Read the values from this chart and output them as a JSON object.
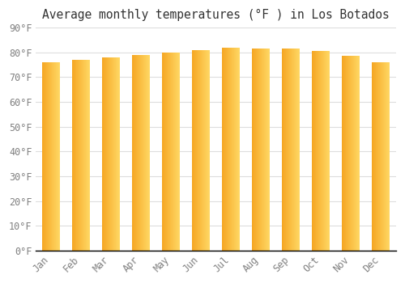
{
  "title": "Average monthly temperatures (°F ) in Los Botados",
  "months": [
    "Jan",
    "Feb",
    "Mar",
    "Apr",
    "May",
    "Jun",
    "Jul",
    "Aug",
    "Sep",
    "Oct",
    "Nov",
    "Dec"
  ],
  "values": [
    76,
    77,
    78,
    79,
    80,
    81,
    82,
    81.5,
    81.5,
    80.5,
    78.5,
    76
  ],
  "ylim": [
    0,
    90
  ],
  "yticks": [
    0,
    10,
    20,
    30,
    40,
    50,
    60,
    70,
    80,
    90
  ],
  "bar_color_left": "#F5A623",
  "bar_color_right": "#FFD966",
  "background_color": "#FFFFFF",
  "grid_color": "#DDDDDD",
  "title_fontsize": 10.5,
  "tick_fontsize": 8.5,
  "bar_width": 0.6
}
